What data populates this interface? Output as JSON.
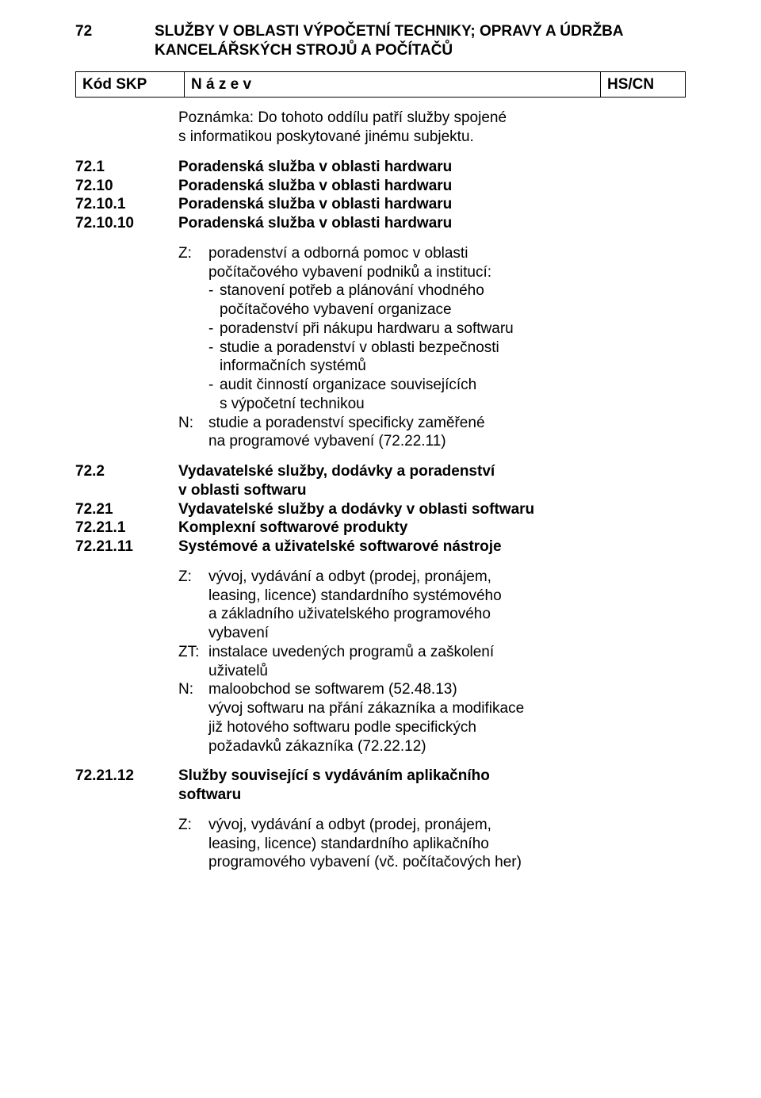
{
  "header": {
    "code": "72",
    "title_line1": "SLUŽBY V OBLASTI VÝPOČETNÍ TECHNIKY; OPRAVY A ÚDRŽBA",
    "title_line2": "KANCELÁŘSKÝCH STROJŮ A POČÍTAČŮ"
  },
  "table_headers": {
    "kod": "Kód SKP",
    "name": "N á z e v",
    "hs": "HS/CN"
  },
  "note": {
    "line1": "Poznámka: Do tohoto oddílu patří služby spojené",
    "line2": "s informatikou poskytované jinému subjektu."
  },
  "group1": {
    "e0": {
      "code": "72.1",
      "name": "Poradenská služba v oblasti hardwaru"
    },
    "e1": {
      "code": "72.10",
      "name": "Poradenská služba v oblasti hardwaru"
    },
    "e2": {
      "code": "72.10.1",
      "name": "Poradenská služba v oblasti hardwaru"
    },
    "e3": {
      "code": "72.10.10",
      "name": "Poradenská služba v oblasti hardwaru"
    }
  },
  "zn1": {
    "z_label": "Z:",
    "z_line1": "poradenství a odborná pomoc v oblasti",
    "z_line2": "počítačového vybavení podniků a institucí:",
    "z_b1a": "stanovení potřeb a plánování vhodného",
    "z_b1b": "počítačového vybavení organizace",
    "z_b2": "poradenství při nákupu hardwaru a softwaru",
    "z_b3a": "studie a poradenství v oblasti bezpečnosti",
    "z_b3b": "informačních systémů",
    "z_b4a": "audit činností organizace souvisejících",
    "z_b4b": "s výpočetní technikou",
    "n_label": "N:",
    "n_line1": "studie a poradenství specificky zaměřené",
    "n_line2": "na programové vybavení (72.22.11)"
  },
  "group2": {
    "e0": {
      "code": "72.2",
      "name1": "Vydavatelské služby, dodávky a poradenství",
      "name2": "v oblasti softwaru"
    },
    "e1": {
      "code": "72.21",
      "name": "Vydavatelské služby a dodávky v oblasti softwaru"
    },
    "e2": {
      "code": "72.21.1",
      "name": "Komplexní softwarové produkty"
    },
    "e3": {
      "code": "72.21.11",
      "name": "Systémové a uživatelské softwarové nástroje"
    }
  },
  "zn2": {
    "z_label": "Z:",
    "z_line1": "vývoj, vydávání a odbyt (prodej, pronájem,",
    "z_line2": "leasing, licence) standardního systémového",
    "z_line3": "a základního uživatelského programového",
    "z_line4": "vybavení",
    "zt_label": "ZT:",
    "zt_line1": "instalace uvedených programů a zaškolení",
    "zt_line2": "uživatelů",
    "n_label": "N:",
    "n_line1": "maloobchod se softwarem (52.48.13)",
    "n_line2": "vývoj softwaru na přání zákazníka a modifikace",
    "n_line3": "již hotového softwaru podle specifických",
    "n_line4": "požadavků zákazníka (72.22.12)"
  },
  "group3": {
    "e0": {
      "code": "72.21.12",
      "name1": "Služby související s vydáváním aplikačního",
      "name2": "softwaru"
    }
  },
  "zn3": {
    "z_label": "Z:",
    "z_line1": "vývoj, vydávání a odbyt (prodej, pronájem,",
    "z_line2": "leasing, licence) standardního aplikačního",
    "z_line3": "programového vybavení (vč. počítačových her)"
  }
}
